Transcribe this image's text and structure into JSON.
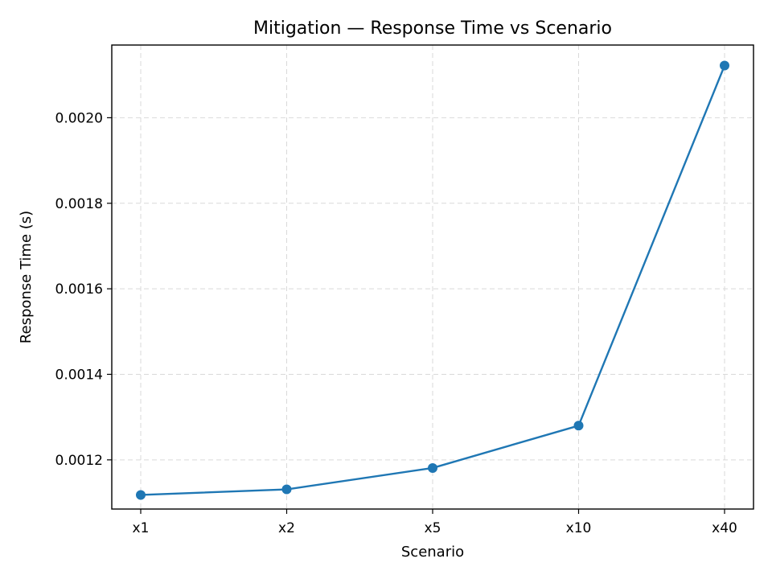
{
  "chart_data": {
    "type": "line",
    "title": "Mitigation — Response Time vs Scenario",
    "xlabel": "Scenario",
    "ylabel": "Response Time (s)",
    "categories": [
      "x1",
      "x2",
      "x5",
      "x10",
      "x40"
    ],
    "series": [
      {
        "values": [
          0.001118,
          0.001131,
          0.001181,
          0.00128,
          0.002122
        ],
        "color": "#1f77b4"
      }
    ],
    "ylim": [
      0.001085,
      0.00217
    ],
    "yticks": [
      0.0012,
      0.0014,
      0.0016,
      0.0018,
      0.002
    ],
    "ytick_labels": [
      "0.0012",
      "0.0014",
      "0.0016",
      "0.0018",
      "0.0020"
    ],
    "grid": true,
    "marker": "circle"
  }
}
